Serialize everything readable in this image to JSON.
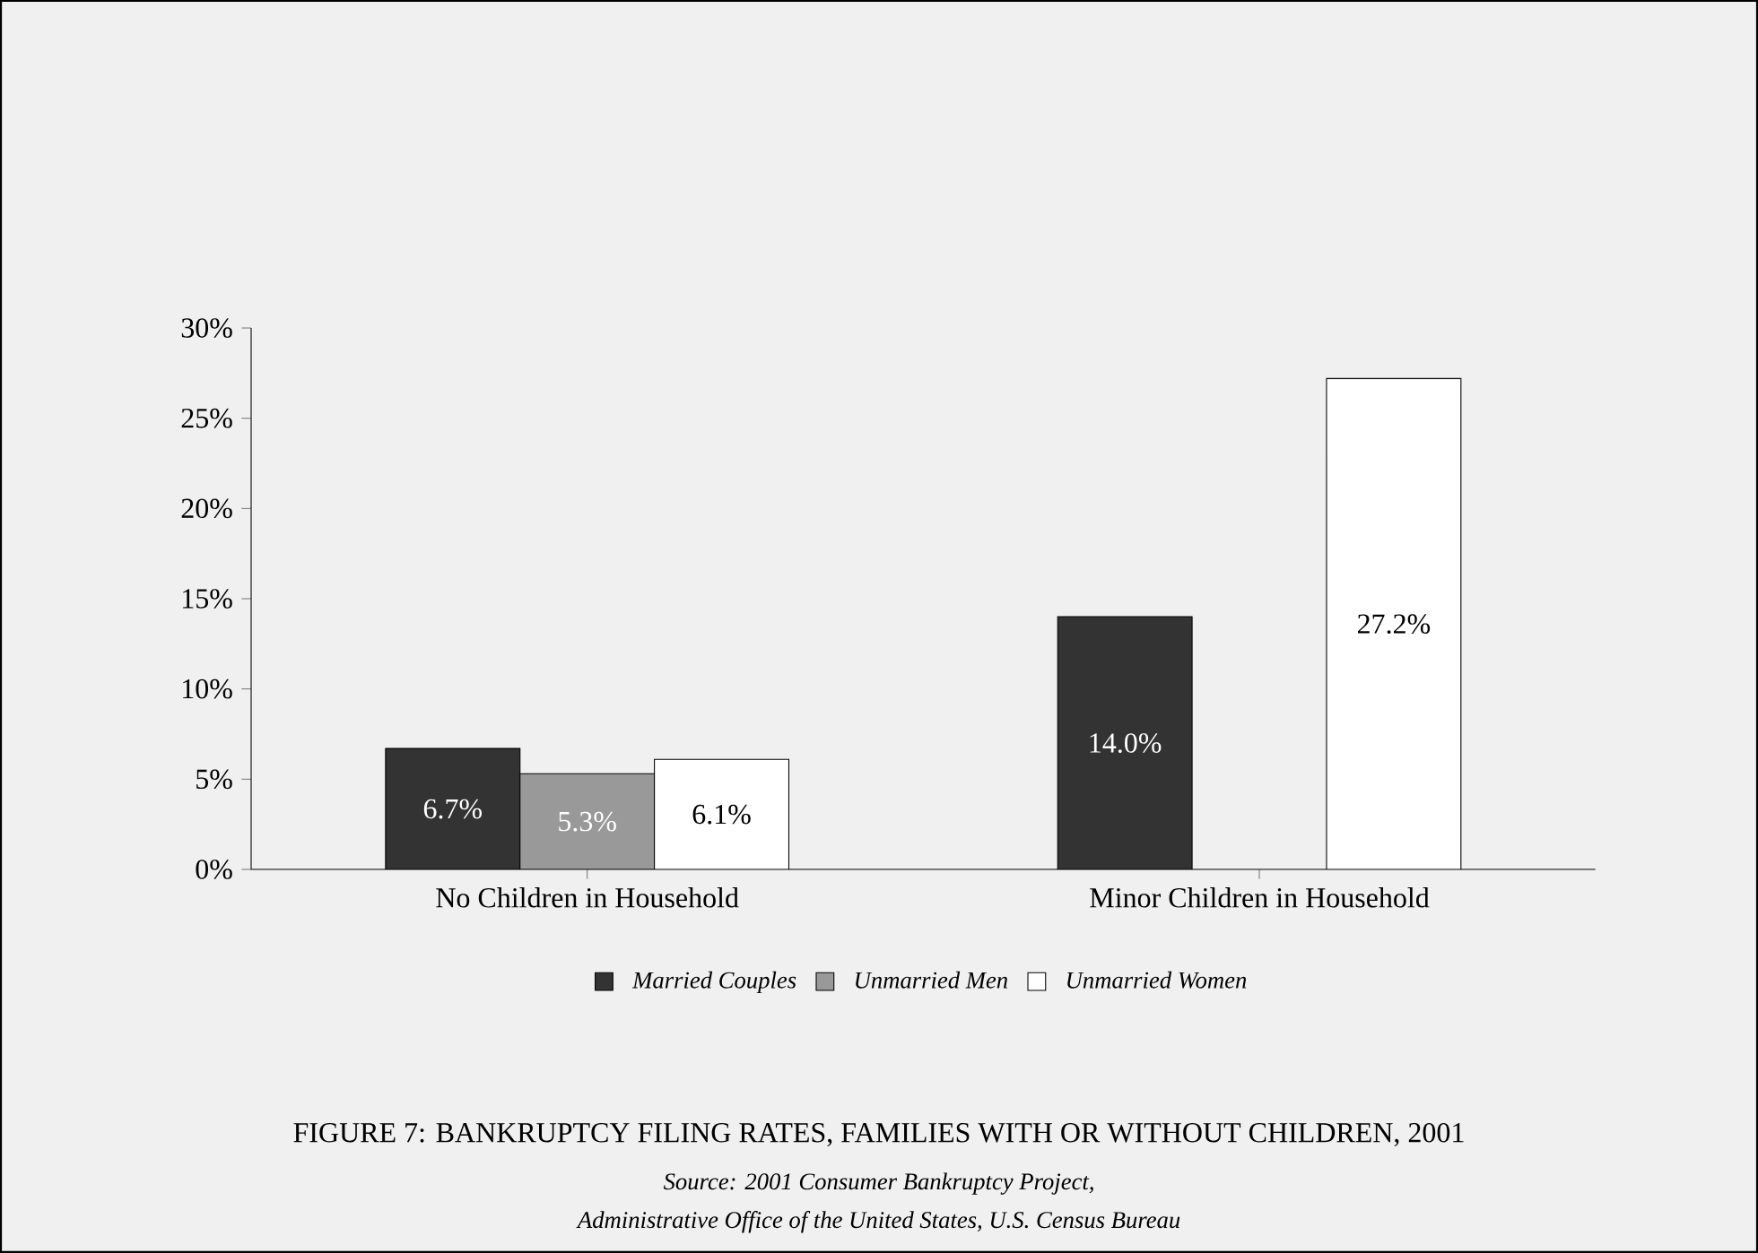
{
  "chart_data": {
    "type": "bar",
    "title": "FIGURE 7: BANKRUPTCY FILING RATES, FAMILIES WITH OR WITHOUT CHILDREN, 2001",
    "annotations": [
      "Source: 2001 Consumer Bankruptcy Project,",
      "Administrative Office of the United States, U.S. Census Bureau"
    ],
    "categories": [
      "No Children in Household",
      "Minor Children in Household"
    ],
    "series": [
      {
        "name": "Married Couples",
        "color": "#333333",
        "values": [
          6.7,
          14.0
        ],
        "value_labels": [
          "6.7%",
          "14.0%"
        ]
      },
      {
        "name": "Unmarried Men",
        "color": "#999999",
        "values": [
          5.3,
          null
        ],
        "value_labels": [
          "5.3%",
          null
        ]
      },
      {
        "name": "Unmarried Women",
        "color": "#ffffff",
        "values": [
          6.1,
          27.2
        ],
        "value_labels": [
          "6.1%",
          "27.2%"
        ]
      }
    ],
    "ylim": [
      0,
      30
    ],
    "yticks": [
      {
        "value": 0,
        "label": "0%"
      },
      {
        "value": 5,
        "label": "5%"
      },
      {
        "value": 10,
        "label": "10%"
      },
      {
        "value": 15,
        "label": "15%"
      },
      {
        "value": 20,
        "label": "20%"
      },
      {
        "value": 25,
        "label": "25%"
      },
      {
        "value": 30,
        "label": "30%"
      }
    ],
    "grid": false,
    "legend": "bottom"
  }
}
